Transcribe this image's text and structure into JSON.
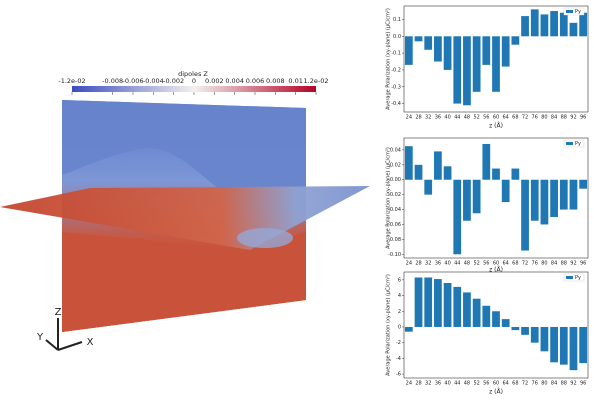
{
  "chart_data": [
    {
      "type": "bar",
      "ylabel": "Average Polarization (xy-plane) (μC/cm²)",
      "xlabel": "z (Å)",
      "categories": [
        24,
        28,
        32,
        36,
        40,
        44,
        48,
        52,
        56,
        60,
        64,
        68,
        72,
        76,
        80,
        84,
        88,
        92,
        96
      ],
      "series": [
        {
          "name": "Py",
          "color": "#1f77b4",
          "values": [
            -0.17,
            -0.03,
            -0.08,
            -0.15,
            -0.2,
            -0.4,
            -0.41,
            -0.33,
            -0.17,
            -0.33,
            -0.18,
            -0.05,
            0.12,
            0.16,
            0.13,
            0.15,
            0.14,
            0.08,
            0.14
          ]
        }
      ],
      "ylim": [
        -0.45,
        0.18
      ],
      "yticks": [
        0.1,
        {
          "value": 0,
          "label": "0.0"
        },
        -0.1,
        -0.2,
        -0.3,
        -0.4
      ],
      "legend": "upper right"
    },
    {
      "type": "bar",
      "ylabel": "Average Polarization (xy-plane) (μC/cm²)",
      "xlabel": "z (Å)",
      "categories": [
        24,
        28,
        32,
        36,
        40,
        44,
        48,
        52,
        56,
        60,
        64,
        68,
        72,
        76,
        80,
        84,
        88,
        92,
        96
      ],
      "series": [
        {
          "name": "Py",
          "color": "#1f77b4",
          "values": [
            0.045,
            0.02,
            -0.02,
            0.038,
            0.018,
            -0.1,
            -0.055,
            -0.045,
            0.048,
            0.015,
            -0.03,
            0.015,
            -0.095,
            -0.055,
            -0.06,
            -0.05,
            -0.04,
            -0.04,
            -0.012
          ]
        }
      ],
      "ylim": [
        -0.105,
        0.056
      ],
      "yticks": [
        {
          "value": 0.04,
          "label": "0.04"
        },
        {
          "value": 0.02,
          "label": "0.02"
        },
        {
          "value": 0,
          "label": "0.00"
        },
        {
          "value": -0.02,
          "label": "-0.02"
        },
        {
          "value": -0.04,
          "label": "-0.04"
        },
        {
          "value": -0.06,
          "label": "-0.06"
        },
        {
          "value": -0.08,
          "label": "-0.08"
        },
        {
          "value": -0.1,
          "label": "-0.10"
        }
      ],
      "legend": "upper right"
    },
    {
      "type": "bar",
      "ylabel": "Average Polarization (xy-plane) (μC/cm²)",
      "xlabel": "z (Å)",
      "categories": [
        24,
        28,
        32,
        36,
        40,
        44,
        48,
        52,
        56,
        60,
        64,
        68,
        72,
        76,
        80,
        84,
        88,
        92,
        96
      ],
      "series": [
        {
          "name": "Py",
          "color": "#1f77b4",
          "values": [
            -0.6,
            6.3,
            6.3,
            6.1,
            5.6,
            5.1,
            4.4,
            3.6,
            2.7,
            2.0,
            1.0,
            -0.4,
            -1.0,
            -2.0,
            -3.1,
            -4.5,
            -4.8,
            -5.5,
            -4.6
          ]
        }
      ],
      "ylim": [
        -6.5,
        7
      ],
      "yticks": [
        6,
        4,
        2,
        0,
        -2,
        -4,
        -6
      ],
      "legend": "upper right"
    }
  ],
  "render": {
    "colorbar": {
      "title": "dipoles Z",
      "range": [
        -0.012,
        0.012
      ],
      "ticks": [
        {
          "value": -0.012,
          "label": "-1.2e-02"
        },
        -0.008,
        -0.006,
        -0.004,
        -0.002,
        0,
        0.002,
        0.004,
        0.006,
        0.008,
        0.01,
        {
          "value": 0.012,
          "label": "1.2e-02"
        }
      ]
    },
    "axes": {
      "z": "Z",
      "y": "Y",
      "x": "X"
    }
  }
}
